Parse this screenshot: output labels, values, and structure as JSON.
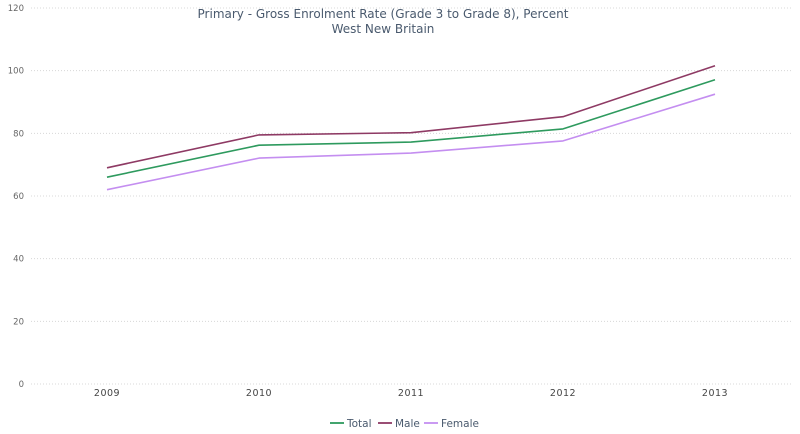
{
  "chart_data": {
    "type": "line",
    "title": "Primary - Gross Enrolment Rate (Grade 3 to Grade 8), Percent",
    "subtitle": "West New Britain",
    "xlabel": "",
    "ylabel": "",
    "x": [
      "2009",
      "2010",
      "2011",
      "2012",
      "2013"
    ],
    "ylim": [
      0,
      120
    ],
    "yticks": [
      0,
      20,
      40,
      60,
      80,
      100,
      120
    ],
    "grid": true,
    "legend": "bottom-center",
    "series": [
      {
        "name": "Total",
        "color": "#2e9a5e",
        "values": [
          66.0,
          76.2,
          77.2,
          81.4,
          97.1
        ]
      },
      {
        "name": "Male",
        "color": "#8e3a64",
        "values": [
          69.0,
          79.5,
          80.2,
          85.3,
          101.6
        ]
      },
      {
        "name": "Female",
        "color": "#c48ef0",
        "values": [
          62.0,
          72.1,
          73.7,
          77.6,
          92.5
        ]
      }
    ]
  }
}
